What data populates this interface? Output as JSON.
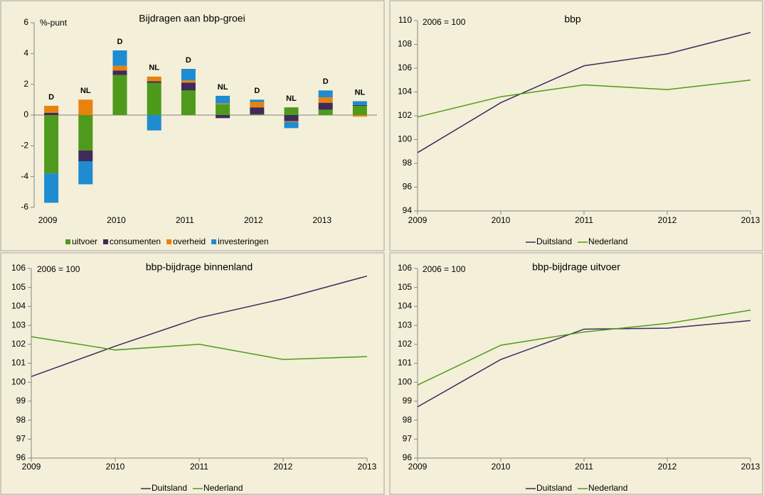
{
  "chart_data": [
    {
      "type": "bar",
      "stacked": true,
      "title": "Bijdragen aan bbp-groei",
      "annotation": "%-punt",
      "categories": [
        "2009",
        null,
        "2010",
        null,
        "2011",
        null,
        "2012",
        null,
        "2013",
        null
      ],
      "bar_labels": [
        "D",
        "NL",
        "D",
        "NL",
        "D",
        "NL",
        "D",
        "NL",
        "D",
        "NL"
      ],
      "series": [
        {
          "name": "uitvoer",
          "color": "#4e9a1c",
          "values": [
            -3.8,
            -2.3,
            2.6,
            2.1,
            1.6,
            0.7,
            0.05,
            0.5,
            0.35,
            0.6
          ]
        },
        {
          "name": "consumenten",
          "color": "#3f2a5c",
          "values": [
            0.15,
            -0.7,
            0.3,
            0.1,
            0.5,
            -0.2,
            0.45,
            -0.4,
            0.45,
            0.05
          ]
        },
        {
          "name": "overheid",
          "color": "#e8820e",
          "values": [
            0.45,
            1.0,
            0.3,
            0.3,
            0.15,
            0.05,
            0.35,
            -0.05,
            0.35,
            -0.1
          ]
        },
        {
          "name": "investeringen",
          "color": "#1f8bd0",
          "values": [
            -1.9,
            -1.5,
            1.0,
            -1.0,
            0.75,
            0.5,
            0.15,
            -0.4,
            0.45,
            0.25
          ]
        }
      ],
      "ylim": [
        -6,
        6
      ],
      "yticks": [
        -6,
        -4,
        -2,
        0,
        2,
        4,
        6
      ],
      "legend": "bottom"
    },
    {
      "type": "line",
      "title": "bbp",
      "annotation": "2006 = 100",
      "categories": [
        "2009",
        "2010",
        "2011",
        "2012",
        "2013"
      ],
      "series": [
        {
          "name": "Duitsland",
          "color": "#3f2a5c",
          "values": [
            98.9,
            103.1,
            106.2,
            107.2,
            109.0
          ]
        },
        {
          "name": "Nederland",
          "color": "#4e9a1c",
          "values": [
            101.9,
            103.6,
            104.6,
            104.2,
            105.0
          ]
        }
      ],
      "ylim": [
        94,
        110
      ],
      "yticks": [
        94,
        96,
        98,
        100,
        102,
        104,
        106,
        108,
        110
      ],
      "legend": "bottom"
    },
    {
      "type": "line",
      "title": "bbp-bijdrage binnenland",
      "annotation": "2006 = 100",
      "categories": [
        "2009",
        "2010",
        "2011",
        "2012",
        "2013"
      ],
      "series": [
        {
          "name": "Duitsland",
          "color": "#3f2a5c",
          "values": [
            100.3,
            101.9,
            103.4,
            104.4,
            105.6
          ]
        },
        {
          "name": "Nederland",
          "color": "#4e9a1c",
          "values": [
            102.4,
            101.7,
            102.0,
            101.2,
            101.35
          ]
        }
      ],
      "ylim": [
        96,
        106
      ],
      "yticks": [
        96,
        97,
        98,
        99,
        100,
        101,
        102,
        103,
        104,
        105,
        106
      ],
      "legend": "bottom"
    },
    {
      "type": "line",
      "title": "bbp-bijdrage uitvoer",
      "annotation": "2006 = 100",
      "categories": [
        "2009",
        "2010",
        "2011",
        "2012",
        "2013"
      ],
      "series": [
        {
          "name": "Duitsland",
          "color": "#3f2a5c",
          "values": [
            98.7,
            101.2,
            102.8,
            102.85,
            103.25
          ]
        },
        {
          "name": "Nederland",
          "color": "#4e9a1c",
          "values": [
            99.85,
            101.95,
            102.65,
            103.1,
            103.8
          ]
        }
      ],
      "ylim": [
        96,
        106
      ],
      "yticks": [
        96,
        97,
        98,
        99,
        100,
        101,
        102,
        103,
        104,
        105,
        106
      ],
      "legend": "bottom"
    }
  ]
}
